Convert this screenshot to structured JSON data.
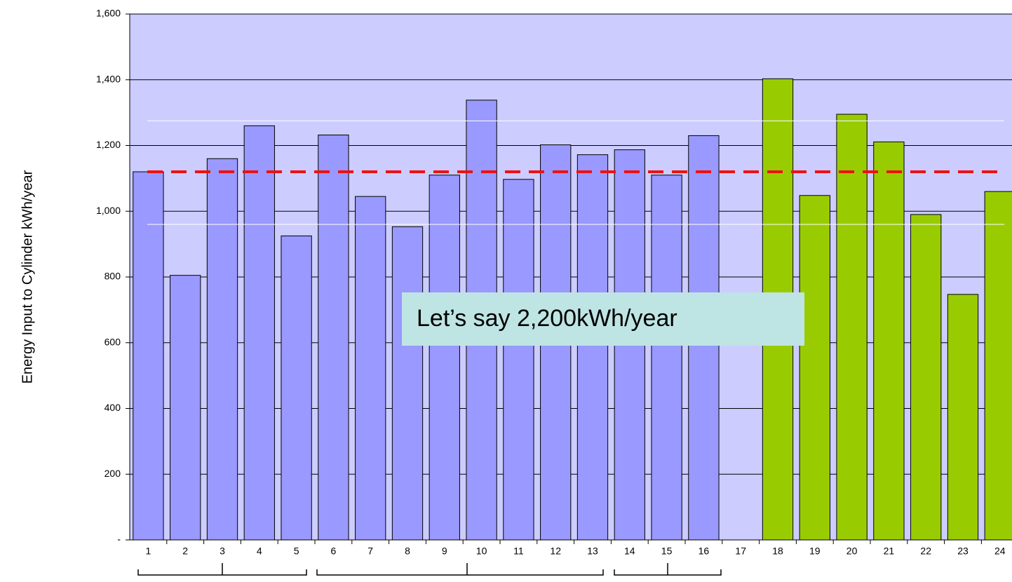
{
  "chart_data": {
    "type": "bar",
    "y_label": "Energy Input to Cylinder kWh/year",
    "categories": [
      "1",
      "2",
      "3",
      "4",
      "5",
      "6",
      "7",
      "8",
      "9",
      "10",
      "11",
      "12",
      "13",
      "14",
      "15",
      "16",
      "17",
      "18",
      "19",
      "20",
      "21",
      "22",
      "23",
      "24"
    ],
    "values": [
      1120,
      805,
      1160,
      1260,
      925,
      1232,
      1045,
      953,
      1110,
      1338,
      1097,
      1202,
      1172,
      1187,
      1110,
      1230,
      null,
      1403,
      1048,
      1295,
      1211,
      990,
      747,
      1060
    ],
    "colors": [
      "#9999ff",
      "#9999ff",
      "#9999ff",
      "#9999ff",
      "#9999ff",
      "#9999ff",
      "#9999ff",
      "#9999ff",
      "#9999ff",
      "#9999ff",
      "#9999ff",
      "#9999ff",
      "#9999ff",
      "#9999ff",
      "#9999ff",
      "#9999ff",
      "#9999ff",
      "#99cc00",
      "#99cc00",
      "#99cc00",
      "#99cc00",
      "#99cc00",
      "#99cc00",
      "#99cc00"
    ],
    "ylim": [
      0,
      1600
    ],
    "yticks": [
      {
        "value": 0,
        "label": "-"
      },
      200,
      400,
      600,
      800,
      {
        "value": 1000,
        "label": "1,000"
      },
      {
        "value": 1200,
        "label": "1,200"
      },
      {
        "value": 1400,
        "label": "1,400"
      },
      {
        "value": 1600,
        "label": "1,600"
      }
    ],
    "grid": true,
    "reference_lines": [
      {
        "value": 1120,
        "color": "#ee1111",
        "dashed": true
      },
      {
        "value": 1275,
        "color": "#ffffff",
        "dashed": false
      },
      {
        "value": 960,
        "color": "#ffffff",
        "dashed": false
      }
    ],
    "annotation": "Let’s say 2,200kWh/year"
  }
}
